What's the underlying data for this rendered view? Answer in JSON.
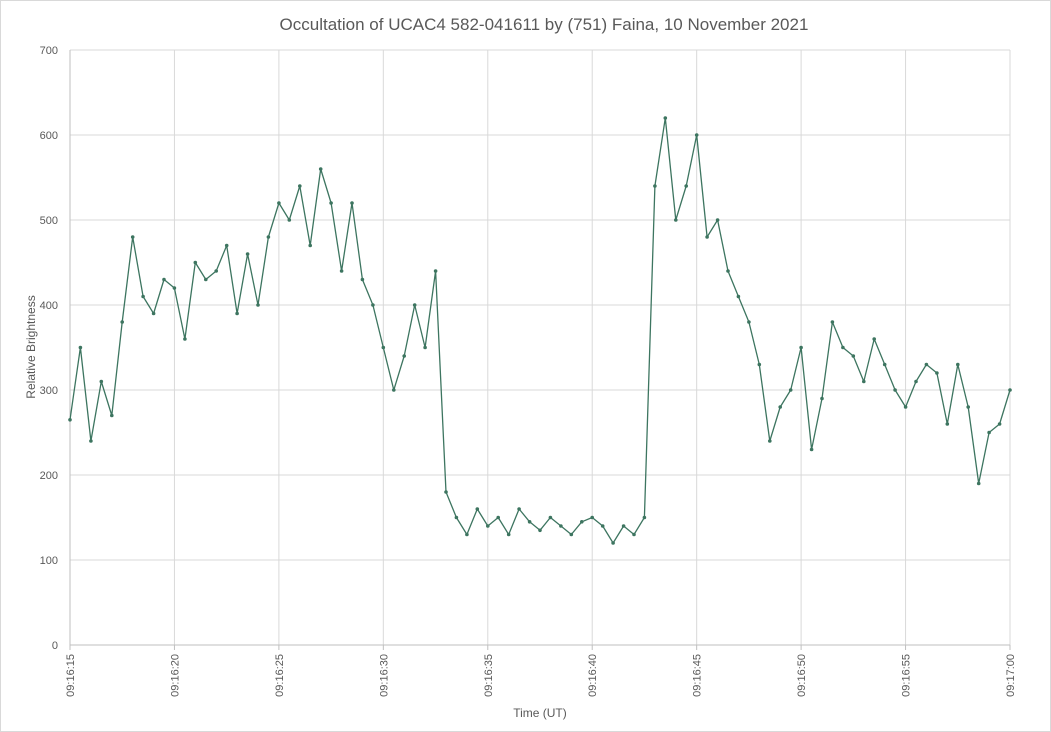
{
  "chart_data": {
    "type": "line",
    "title": "Occultation of UCAC4 582-041611 by (751) Faina, 10 November 2021",
    "xlabel": "Time (UT)",
    "ylabel": "Relative Brightness",
    "x_unit": "seconds after 09:16:15 UT",
    "xlim": [
      0,
      45
    ],
    "ylim": [
      0,
      700
    ],
    "y_ticks": [
      0,
      100,
      200,
      300,
      400,
      500,
      600,
      700
    ],
    "x_tick_values": [
      0,
      5,
      10,
      15,
      20,
      25,
      30,
      35,
      40,
      45
    ],
    "x_tick_labels": [
      "09:16:15",
      "09:16:20",
      "09:16:25",
      "09:16:30",
      "09:16:35",
      "09:16:40",
      "09:16:45",
      "09:16:50",
      "09:16:55",
      "09:17:00"
    ],
    "grid": true,
    "legend": "none",
    "line_color": "#3d7560",
    "marker": "circle",
    "series": [
      {
        "x": [
          0.0,
          0.5,
          1.0,
          1.5,
          2.0,
          2.5,
          3.0,
          3.5,
          4.0,
          4.5,
          5.0,
          5.5,
          6.0,
          6.5,
          7.0,
          7.5,
          8.0,
          8.5,
          9.0,
          9.5,
          10.0,
          10.5,
          11.0,
          11.5,
          12.0,
          12.5,
          13.0,
          13.5,
          14.0,
          14.5,
          15.0,
          15.5,
          16.0,
          16.5,
          17.0,
          17.5,
          18.0,
          18.5,
          19.0,
          19.5,
          20.0,
          20.5,
          21.0,
          21.5,
          22.0,
          22.5,
          23.0,
          23.5,
          24.0,
          24.5,
          25.0,
          25.5,
          26.0,
          26.5,
          27.0,
          27.5,
          28.0,
          28.5,
          29.0,
          29.5,
          30.0,
          30.5,
          31.0,
          31.5,
          32.0,
          32.5,
          33.0,
          33.5,
          34.0,
          34.5,
          35.0,
          35.5,
          36.0,
          36.5,
          37.0,
          37.5,
          38.0,
          38.5,
          39.0,
          39.5,
          40.0,
          40.5,
          41.0,
          41.5,
          42.0,
          42.5,
          43.0,
          43.5,
          44.0,
          44.5,
          45.0
        ],
        "y": [
          265,
          350,
          240,
          310,
          270,
          380,
          480,
          410,
          390,
          430,
          420,
          360,
          450,
          430,
          440,
          470,
          390,
          460,
          400,
          480,
          520,
          500,
          540,
          470,
          560,
          520,
          440,
          520,
          430,
          400,
          350,
          300,
          340,
          400,
          350,
          440,
          180,
          150,
          130,
          160,
          140,
          150,
          130,
          160,
          145,
          135,
          150,
          140,
          130,
          145,
          150,
          140,
          120,
          140,
          130,
          150,
          540,
          620,
          500,
          540,
          600,
          480,
          500,
          440,
          410,
          380,
          330,
          240,
          280,
          300,
          350,
          230,
          290,
          380,
          350,
          340,
          310,
          360,
          330,
          300,
          280,
          310,
          330,
          320,
          260,
          330,
          280,
          190,
          250,
          260,
          300
        ]
      }
    ]
  }
}
